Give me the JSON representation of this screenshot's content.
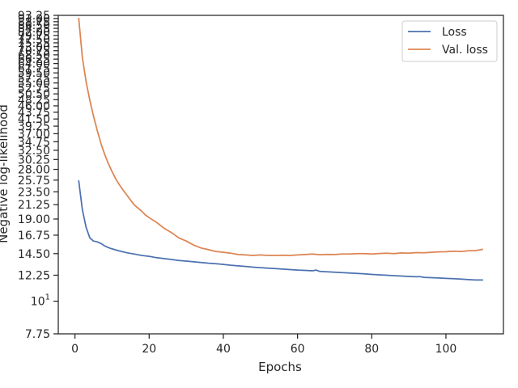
{
  "chart_data": {
    "type": "line",
    "xlabel": "Epochs",
    "ylabel": "Negative log-likelihood",
    "xlim": [
      -4.5,
      115.5
    ],
    "ylim": [
      7.75,
      93.25
    ],
    "y_scale": "log",
    "x_ticks": [
      0,
      20,
      40,
      60,
      80,
      100
    ],
    "y_ticks": [
      {
        "value": 7.75,
        "label": "7.75"
      },
      {
        "value": 10,
        "label": "10",
        "sup": "1"
      },
      {
        "value": 12.25,
        "label": "12.25"
      },
      {
        "value": 14.5,
        "label": "14.50"
      },
      {
        "value": 16.75,
        "label": "16.75"
      },
      {
        "value": 19.0,
        "label": "19.00"
      },
      {
        "value": 21.25,
        "label": "21.25"
      },
      {
        "value": 23.5,
        "label": "23.50"
      },
      {
        "value": 25.75,
        "label": "25.75"
      },
      {
        "value": 28.0,
        "label": "28.00"
      },
      {
        "value": 30.25,
        "label": "30.25"
      },
      {
        "value": 32.5,
        "label": "32.50"
      },
      {
        "value": 34.75,
        "label": "34.75"
      },
      {
        "value": 37.0,
        "label": "37.00"
      },
      {
        "value": 39.25,
        "label": "39.25"
      },
      {
        "value": 41.5,
        "label": "41.50"
      },
      {
        "value": 43.75,
        "label": "43.75"
      },
      {
        "value": 46.0,
        "label": "46.00"
      },
      {
        "value": 48.25,
        "label": "48.25"
      },
      {
        "value": 50.5,
        "label": "50.50"
      },
      {
        "value": 52.75,
        "label": "52.75"
      },
      {
        "value": 55.0,
        "label": "55.00"
      },
      {
        "value": 57.25,
        "label": "57.25"
      },
      {
        "value": 59.5,
        "label": "59.50"
      },
      {
        "value": 61.75,
        "label": "61.75"
      },
      {
        "value": 64.0,
        "label": "64.00"
      },
      {
        "value": 66.25,
        "label": "66.25"
      },
      {
        "value": 68.5,
        "label": "68.50"
      },
      {
        "value": 70.75,
        "label": "70.75"
      },
      {
        "value": 73.0,
        "label": "73.00"
      },
      {
        "value": 75.25,
        "label": "75.25"
      },
      {
        "value": 77.5,
        "label": "77.50"
      },
      {
        "value": 79.75,
        "label": "79.75"
      },
      {
        "value": 82.0,
        "label": "82.00"
      },
      {
        "value": 84.25,
        "label": "84.25"
      },
      {
        "value": 86.5,
        "label": "86.50"
      },
      {
        "value": 88.75,
        "label": "88.75"
      },
      {
        "value": 91.0,
        "label": "91.00"
      },
      {
        "value": 93.25,
        "label": "93.25"
      }
    ],
    "legend_position": "top-right",
    "grid": false,
    "series": [
      {
        "name": "Loss",
        "color": "#4c72b0",
        "x": [
          1,
          2,
          3,
          4,
          5,
          6,
          7,
          8,
          9,
          10,
          12,
          14,
          16,
          18,
          20,
          22,
          24,
          26,
          28,
          30,
          32,
          34,
          36,
          38,
          40,
          42,
          44,
          46,
          48,
          50,
          52,
          54,
          56,
          58,
          60,
          62,
          64,
          65,
          66,
          68,
          70,
          72,
          74,
          76,
          78,
          80,
          82,
          84,
          86,
          88,
          90,
          92,
          93,
          94,
          96,
          98,
          100,
          102,
          104,
          106,
          108,
          110
        ],
        "y": [
          25.7,
          20.4,
          17.8,
          16.4,
          16.0,
          15.9,
          15.7,
          15.4,
          15.2,
          15.05,
          14.8,
          14.6,
          14.45,
          14.3,
          14.2,
          14.05,
          13.95,
          13.85,
          13.75,
          13.68,
          13.6,
          13.53,
          13.46,
          13.4,
          13.33,
          13.25,
          13.18,
          13.12,
          13.05,
          13.0,
          12.95,
          12.9,
          12.85,
          12.8,
          12.75,
          12.72,
          12.68,
          12.75,
          12.62,
          12.58,
          12.54,
          12.5,
          12.46,
          12.42,
          12.38,
          12.33,
          12.29,
          12.25,
          12.21,
          12.17,
          12.13,
          12.1,
          12.12,
          12.05,
          12.02,
          11.99,
          11.95,
          11.92,
          11.88,
          11.84,
          11.8,
          11.8
        ]
      },
      {
        "name": "Val. loss",
        "color": "#dd8452",
        "x": [
          1,
          2,
          3,
          4,
          5,
          6,
          7,
          8,
          9,
          10,
          11,
          12,
          13,
          14,
          15,
          16,
          17,
          18,
          19,
          20,
          22,
          24,
          26,
          28,
          30,
          32,
          34,
          36,
          38,
          40,
          42,
          44,
          46,
          48,
          50,
          52,
          54,
          56,
          58,
          60,
          62,
          64,
          66,
          68,
          70,
          72,
          74,
          76,
          78,
          80,
          82,
          84,
          86,
          88,
          90,
          92,
          94,
          96,
          98,
          100,
          102,
          104,
          106,
          108,
          110
        ],
        "y": [
          91.5,
          67.0,
          55.5,
          48.0,
          42.5,
          38.0,
          34.3,
          31.5,
          29.3,
          27.5,
          26.0,
          24.8,
          23.8,
          22.9,
          22.0,
          21.2,
          20.7,
          20.2,
          19.6,
          19.2,
          18.5,
          17.7,
          17.1,
          16.4,
          16.0,
          15.5,
          15.15,
          14.95,
          14.75,
          14.65,
          14.55,
          14.4,
          14.35,
          14.3,
          14.35,
          14.3,
          14.3,
          14.32,
          14.3,
          14.35,
          14.4,
          14.45,
          14.38,
          14.42,
          14.4,
          14.45,
          14.45,
          14.5,
          14.5,
          14.45,
          14.52,
          14.55,
          14.5,
          14.58,
          14.55,
          14.62,
          14.6,
          14.65,
          14.7,
          14.72,
          14.78,
          14.75,
          14.82,
          14.85,
          15.0
        ]
      }
    ]
  }
}
